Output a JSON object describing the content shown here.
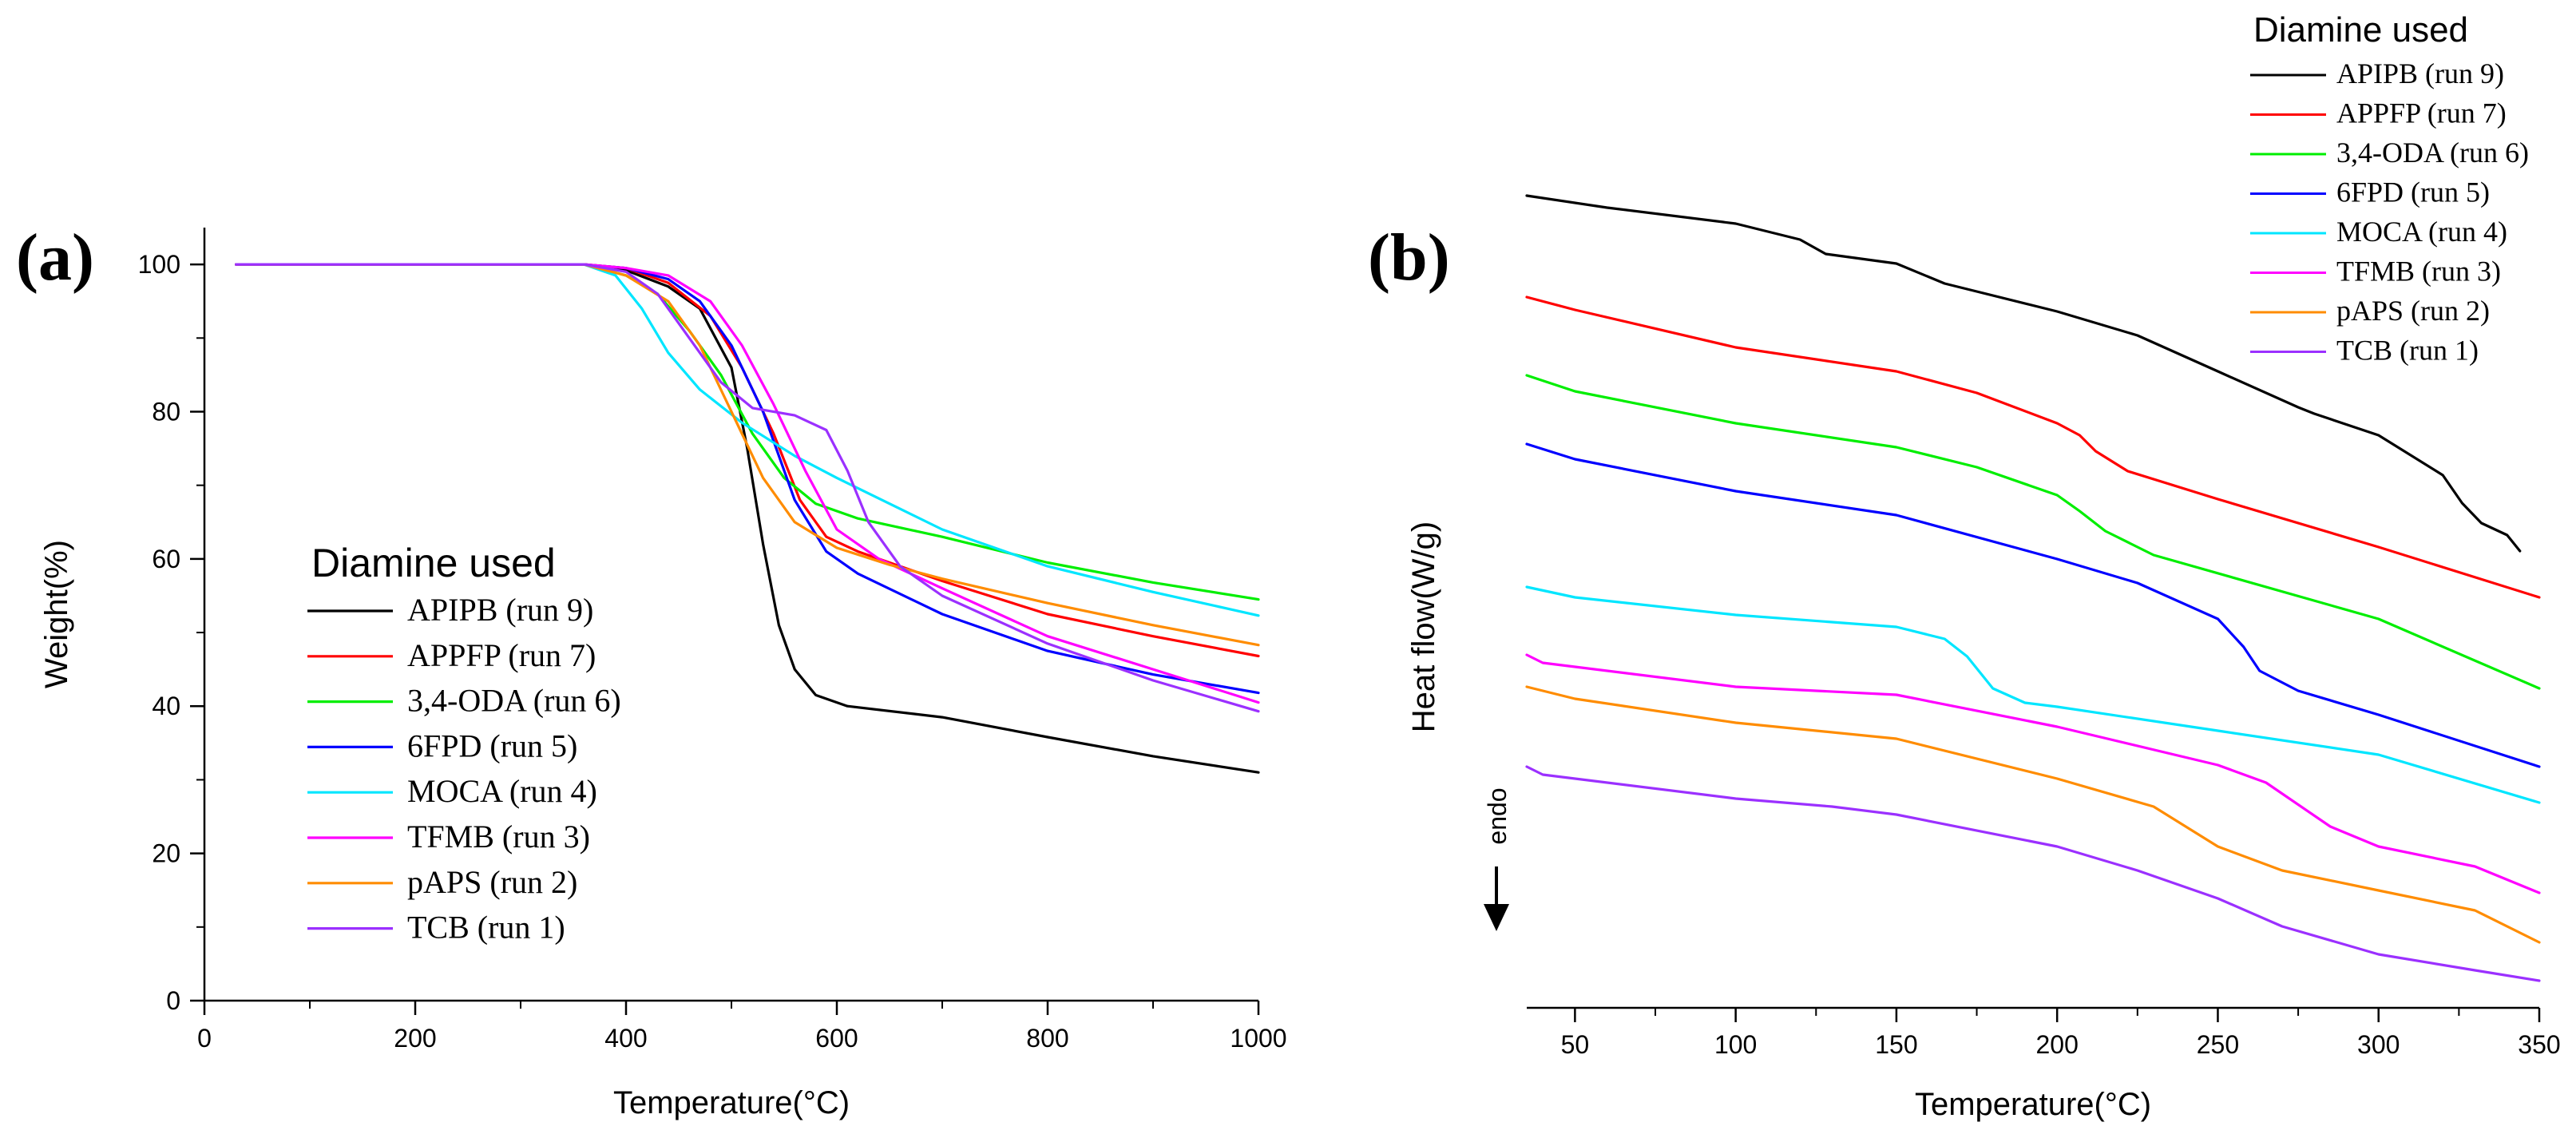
{
  "chart_data": [
    {
      "type": "line",
      "panel_label": "(a)",
      "xlabel": "Temperature(°C)",
      "ylabel": "Weight(%)",
      "xlim": [
        0,
        1000
      ],
      "ylim": [
        0,
        105
      ],
      "xticks": [
        "0",
        "200",
        "400",
        "600",
        "800",
        "1000"
      ],
      "yticks": [
        "0",
        "20",
        "40",
        "60",
        "80",
        "100"
      ],
      "legend_title": "Diamine used",
      "legend_position": "lower-left",
      "series": [
        {
          "name": "APIPB (run 9)",
          "color": "#000000",
          "points": [
            [
              30,
              100
            ],
            [
              360,
              100
            ],
            [
              400,
              99.2
            ],
            [
              440,
              97
            ],
            [
              470,
              94
            ],
            [
              500,
              86
            ],
            [
              515,
              75
            ],
            [
              530,
              62
            ],
            [
              545,
              51
            ],
            [
              560,
              45
            ],
            [
              580,
              41.5
            ],
            [
              610,
              40
            ],
            [
              700,
              38.5
            ],
            [
              800,
              35.8
            ],
            [
              900,
              33.2
            ],
            [
              1000,
              31
            ]
          ]
        },
        {
          "name": "APPFP (run 7)",
          "color": "#ff0000",
          "points": [
            [
              30,
              100
            ],
            [
              360,
              100
            ],
            [
              400,
              99.5
            ],
            [
              440,
              97.5
            ],
            [
              480,
              93
            ],
            [
              510,
              86
            ],
            [
              540,
              77
            ],
            [
              565,
              68
            ],
            [
              590,
              63
            ],
            [
              620,
              61
            ],
            [
              700,
              57
            ],
            [
              800,
              52.5
            ],
            [
              900,
              49.5
            ],
            [
              1000,
              46.8
            ]
          ]
        },
        {
          "name": "3,4-ODA (run 6)",
          "color": "#00ee00",
          "points": [
            [
              30,
              100
            ],
            [
              360,
              100
            ],
            [
              400,
              98.5
            ],
            [
              430,
              96
            ],
            [
              460,
              91
            ],
            [
              490,
              85
            ],
            [
              520,
              77
            ],
            [
              550,
              71
            ],
            [
              580,
              67.5
            ],
            [
              620,
              65.5
            ],
            [
              700,
              63
            ],
            [
              800,
              59.5
            ],
            [
              900,
              56.8
            ],
            [
              1000,
              54.5
            ]
          ]
        },
        {
          "name": "6FPD (run 5)",
          "color": "#0000ff",
          "points": [
            [
              30,
              100
            ],
            [
              360,
              100
            ],
            [
              400,
              99.5
            ],
            [
              440,
              98
            ],
            [
              470,
              95
            ],
            [
              500,
              89
            ],
            [
              530,
              80
            ],
            [
              560,
              68
            ],
            [
              590,
              61
            ],
            [
              620,
              58
            ],
            [
              700,
              52.5
            ],
            [
              800,
              47.5
            ],
            [
              900,
              44.3
            ],
            [
              1000,
              41.8
            ]
          ]
        },
        {
          "name": "MOCA (run 4)",
          "color": "#00e6ff",
          "points": [
            [
              30,
              100
            ],
            [
              360,
              100
            ],
            [
              390,
              98.5
            ],
            [
              415,
              94
            ],
            [
              440,
              88
            ],
            [
              470,
              83
            ],
            [
              510,
              78.5
            ],
            [
              560,
              74
            ],
            [
              600,
              71
            ],
            [
              700,
              64
            ],
            [
              800,
              59
            ],
            [
              900,
              55.5
            ],
            [
              1000,
              52.3
            ]
          ]
        },
        {
          "name": "TFMB (run 3)",
          "color": "#ff00ff",
          "points": [
            [
              30,
              100
            ],
            [
              360,
              100
            ],
            [
              400,
              99.5
            ],
            [
              440,
              98.5
            ],
            [
              480,
              95
            ],
            [
              510,
              89
            ],
            [
              540,
              81
            ],
            [
              570,
              72
            ],
            [
              600,
              64
            ],
            [
              640,
              60
            ],
            [
              700,
              56
            ],
            [
              800,
              49.5
            ],
            [
              900,
              45
            ],
            [
              1000,
              40.5
            ]
          ]
        },
        {
          "name": "pAPS (run 2)",
          "color": "#ff8c00",
          "points": [
            [
              30,
              100
            ],
            [
              360,
              100
            ],
            [
              400,
              98.5
            ],
            [
              440,
              95
            ],
            [
              470,
              89
            ],
            [
              500,
              80
            ],
            [
              530,
              71
            ],
            [
              560,
              65
            ],
            [
              600,
              61.5
            ],
            [
              650,
              59.2
            ],
            [
              700,
              57.3
            ],
            [
              800,
              54
            ],
            [
              900,
              51
            ],
            [
              1000,
              48.3
            ]
          ]
        },
        {
          "name": "TCB (run 1)",
          "color": "#9b30ff",
          "points": [
            [
              30,
              100
            ],
            [
              360,
              100
            ],
            [
              400,
              99
            ],
            [
              430,
              96
            ],
            [
              460,
              90
            ],
            [
              490,
              84
            ],
            [
              520,
              80.5
            ],
            [
              560,
              79.5
            ],
            [
              590,
              77.5
            ],
            [
              610,
              72
            ],
            [
              630,
              65
            ],
            [
              660,
              59
            ],
            [
              700,
              55
            ],
            [
              800,
              48.5
            ],
            [
              900,
              43.5
            ],
            [
              1000,
              39.3
            ]
          ]
        }
      ]
    },
    {
      "type": "line",
      "panel_label": "(b)",
      "xlabel": "Temperature(°C)",
      "ylabel": "Heat flow(W/g)",
      "endo_label": "endo",
      "xlim": [
        35,
        350
      ],
      "xticks": [
        "50",
        "100",
        "150",
        "200",
        "250",
        "300",
        "350"
      ],
      "y_tick_labels_shown": false,
      "legend_title": "Diamine used",
      "legend_position": "top-right",
      "series": [
        {
          "name": "APIPB (run 9)",
          "color": "#000000",
          "points": [
            [
              35,
              245
            ],
            [
              60,
              260
            ],
            [
              100,
              280
            ],
            [
              120,
              300
            ],
            [
              128,
              318
            ],
            [
              150,
              330
            ],
            [
              165,
              355
            ],
            [
              200,
              390
            ],
            [
              225,
              420
            ],
            [
              250,
              465
            ],
            [
              275,
              510
            ],
            [
              280,
              518
            ],
            [
              300,
              545
            ],
            [
              320,
              595
            ],
            [
              326,
              630
            ],
            [
              332,
              655
            ],
            [
              340,
              670
            ],
            [
              344,
              690
            ]
          ]
        },
        {
          "name": "APPFP (run 7)",
          "color": "#ff0000",
          "points": [
            [
              35,
              372
            ],
            [
              50,
              388
            ],
            [
              100,
              435
            ],
            [
              150,
              465
            ],
            [
              175,
              492
            ],
            [
              200,
              530
            ],
            [
              207,
              545
            ],
            [
              212,
              565
            ],
            [
              222,
              590
            ],
            [
              250,
              625
            ],
            [
              300,
              685
            ],
            [
              350,
              748
            ]
          ]
        },
        {
          "name": "3,4-ODA (run 6)",
          "color": "#00ee00",
          "points": [
            [
              35,
              470
            ],
            [
              50,
              490
            ],
            [
              100,
              530
            ],
            [
              150,
              560
            ],
            [
              175,
              585
            ],
            [
              200,
              620
            ],
            [
              207,
              640
            ],
            [
              215,
              665
            ],
            [
              230,
              695
            ],
            [
              300,
              775
            ],
            [
              350,
              862
            ]
          ]
        },
        {
          "name": "6FPD (run 5)",
          "color": "#0000ff",
          "points": [
            [
              35,
              556
            ],
            [
              50,
              575
            ],
            [
              100,
              615
            ],
            [
              150,
              645
            ],
            [
              200,
              700
            ],
            [
              225,
              730
            ],
            [
              250,
              775
            ],
            [
              258,
              810
            ],
            [
              263,
              840
            ],
            [
              275,
              865
            ],
            [
              300,
              895
            ],
            [
              350,
              960
            ]
          ]
        },
        {
          "name": "MOCA (run 4)",
          "color": "#00e6ff",
          "points": [
            [
              35,
              735
            ],
            [
              50,
              748
            ],
            [
              100,
              770
            ],
            [
              150,
              785
            ],
            [
              165,
              800
            ],
            [
              172,
              822
            ],
            [
              180,
              862
            ],
            [
              190,
              880
            ],
            [
              200,
              885
            ],
            [
              250,
              915
            ],
            [
              300,
              945
            ],
            [
              350,
              1005
            ]
          ]
        },
        {
          "name": "TFMB (run 3)",
          "color": "#ff00ff",
          "points": [
            [
              35,
              820
            ],
            [
              40,
              830
            ],
            [
              100,
              860
            ],
            [
              150,
              870
            ],
            [
              200,
              910
            ],
            [
              250,
              958
            ],
            [
              265,
              980
            ],
            [
              285,
              1035
            ],
            [
              300,
              1060
            ],
            [
              330,
              1085
            ],
            [
              350,
              1118
            ]
          ]
        },
        {
          "name": "pAPS (run 2)",
          "color": "#ff8c00",
          "points": [
            [
              35,
              860
            ],
            [
              50,
              875
            ],
            [
              100,
              905
            ],
            [
              150,
              925
            ],
            [
              200,
              975
            ],
            [
              230,
              1010
            ],
            [
              250,
              1060
            ],
            [
              270,
              1090
            ],
            [
              300,
              1115
            ],
            [
              330,
              1140
            ],
            [
              350,
              1180
            ]
          ]
        },
        {
          "name": "TCB (run 1)",
          "color": "#9b30ff",
          "points": [
            [
              35,
              960
            ],
            [
              40,
              970
            ],
            [
              100,
              1000
            ],
            [
              130,
              1010
            ],
            [
              150,
              1020
            ],
            [
              200,
              1060
            ],
            [
              225,
              1090
            ],
            [
              250,
              1125
            ],
            [
              270,
              1160
            ],
            [
              300,
              1195
            ],
            [
              330,
              1215
            ],
            [
              350,
              1228
            ]
          ]
        }
      ]
    }
  ]
}
